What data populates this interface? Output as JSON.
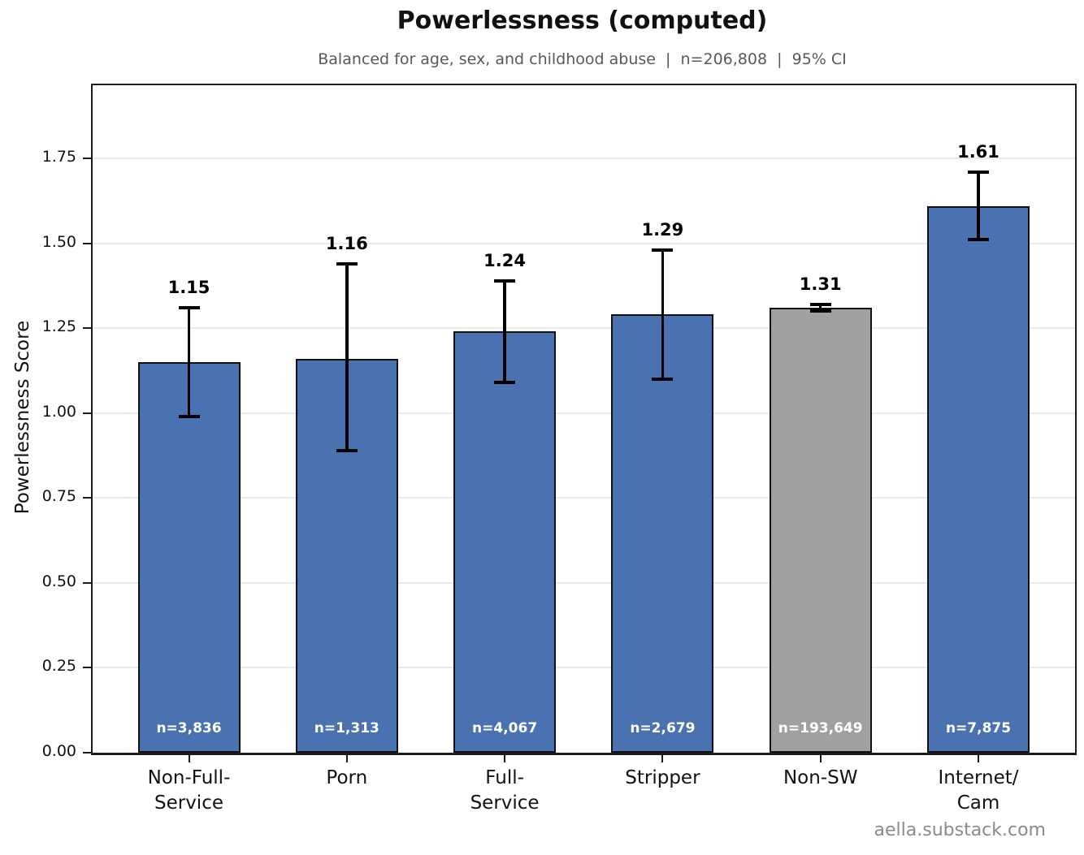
{
  "title": "Powerlessness (computed)",
  "subtitle": "Balanced for age, sex, and childhood abuse  |  n=206,808  |  95% CI",
  "watermark": "aella.substack.com",
  "colors": {
    "bar_blue": "#4a72b0",
    "bar_gray": "#a0a0a0",
    "bar_edge": "#111111",
    "grid": "#e9e9e9",
    "subtitle_gray": "#595959",
    "watermark_gray": "#8a8a8a"
  },
  "chart_data": {
    "type": "bar",
    "title": "Powerlessness (computed)",
    "subtitle": "Balanced for age, sex, and childhood abuse  |  n=206,808  |  95% CI",
    "xlabel": "",
    "ylabel": "Powerlessness Score",
    "ylim": [
      0,
      1.965
    ],
    "yticks": [
      0.0,
      0.25,
      0.5,
      0.75,
      1.0,
      1.25,
      1.5,
      1.75
    ],
    "ytick_labels": [
      "0.00",
      "0.25",
      "0.50",
      "0.75",
      "1.00",
      "1.25",
      "1.50",
      "1.75"
    ],
    "grid": true,
    "error_bars": "95% CI",
    "categories": [
      "Non-Full-Service",
      "Porn",
      "Full-Service",
      "Stripper",
      "Non-SW",
      "Internet/Cam"
    ],
    "category_label_lines": [
      [
        "Non-Full-",
        "Service"
      ],
      [
        "Porn"
      ],
      [
        "Full-",
        "Service"
      ],
      [
        "Stripper"
      ],
      [
        "Non-SW"
      ],
      [
        "Internet/",
        "Cam"
      ]
    ],
    "values": [
      1.15,
      1.16,
      1.24,
      1.29,
      1.31,
      1.61
    ],
    "value_labels": [
      "1.15",
      "1.16",
      "1.24",
      "1.29",
      "1.31",
      "1.61"
    ],
    "ci_low": [
      0.99,
      0.89,
      1.09,
      1.1,
      1.3,
      1.51
    ],
    "ci_high": [
      1.31,
      1.44,
      1.39,
      1.48,
      1.32,
      1.71
    ],
    "n_labels": [
      "n=3,836",
      "n=1,313",
      "n=4,067",
      "n=2,679",
      "n=193,649",
      "n=7,875"
    ],
    "bar_color_keys": [
      "bar_blue",
      "bar_blue",
      "bar_blue",
      "bar_blue",
      "bar_gray",
      "bar_blue"
    ]
  }
}
